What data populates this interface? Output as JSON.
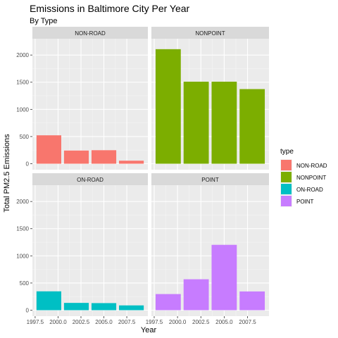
{
  "chart_data": {
    "type": "bar",
    "title": "Emissions in Baltimore City Per Year",
    "subtitle": "By Type",
    "xlabel": "Year",
    "ylabel": "Total PM2.5 Emissions",
    "x": [
      1999,
      2002,
      2005,
      2008
    ],
    "xticks": [
      "1997.5",
      "2000.0",
      "2002.5",
      "2005.0",
      "2007.5"
    ],
    "xtick_values": [
      1997.5,
      2000.0,
      2002.5,
      2005.0,
      2007.5
    ],
    "xlim": [
      1997.2,
      2009.8
    ],
    "yticks": [
      0,
      500,
      1000,
      1500,
      2000
    ],
    "ylim": [
      -110,
      2300
    ],
    "bar_width": 2.7,
    "legend": {
      "title": "type",
      "placement": "right"
    },
    "grid": true,
    "facets": [
      {
        "name": "NON-ROAD",
        "color": "#F8766D",
        "values": [
          522.9,
          242.6,
          248.9,
          55.8
        ]
      },
      {
        "name": "NONPOINT",
        "color": "#7CAE00",
        "values": [
          2107.6,
          1509.5,
          1509.5,
          1373.2
        ]
      },
      {
        "name": "ON-ROAD",
        "color": "#00BFC4",
        "values": [
          347.0,
          134.3,
          130.4,
          88.3
        ]
      },
      {
        "name": "POINT",
        "color": "#C77CFF",
        "values": [
          296.8,
          569.3,
          1202.5,
          344.98
        ]
      }
    ]
  }
}
